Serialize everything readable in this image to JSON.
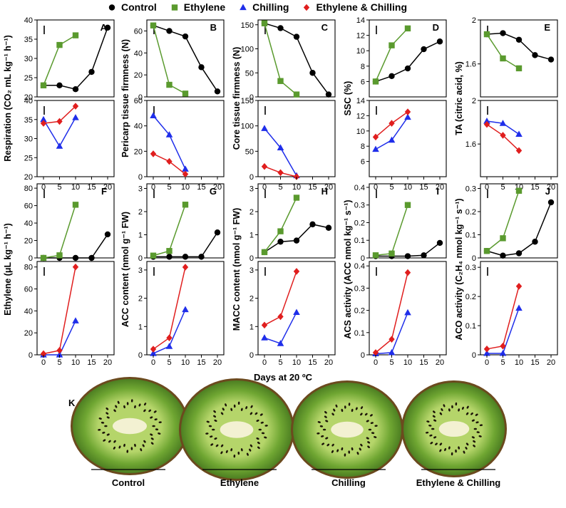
{
  "legend": [
    {
      "name": "Control",
      "color": "#000000",
      "marker": "circle"
    },
    {
      "name": "Ethylene",
      "color": "#5a9a2e",
      "marker": "square"
    },
    {
      "name": "Chilling",
      "color": "#1f2eea",
      "marker": "triangle"
    },
    {
      "name": "Ethylene & Chilling",
      "color": "#e01e1e",
      "marker": "diamond"
    }
  ],
  "xlabel": "Days at 20 ºC",
  "chart_data": [
    {
      "panel": "A",
      "type": "line",
      "ylabel": "Respiration (CO₂ mL kg⁻¹ h⁻¹)",
      "x_ticks": [
        0,
        5,
        10,
        15,
        20
      ],
      "top": {
        "ylim": [
          20,
          40
        ],
        "yticks": [
          20,
          25,
          30,
          35,
          40
        ],
        "series": [
          {
            "name": "Control",
            "x": [
              0,
              5,
              10,
              15,
              20
            ],
            "y": [
              23,
              23,
              22,
              26.5,
              38
            ]
          },
          {
            "name": "Ethylene",
            "x": [
              0,
              5,
              10
            ],
            "y": [
              23,
              33.5,
              36
            ]
          }
        ]
      },
      "bottom": {
        "ylim": [
          20,
          40
        ],
        "yticks": [
          20,
          25,
          30,
          35,
          40
        ],
        "series": [
          {
            "name": "Chilling",
            "x": [
              0,
              5,
              10
            ],
            "y": [
              35,
              28,
              35.5
            ]
          },
          {
            "name": "Ethylene & Chilling",
            "x": [
              0,
              5,
              10
            ],
            "y": [
              34,
              34.5,
              38.5
            ]
          }
        ]
      }
    },
    {
      "panel": "B",
      "type": "line",
      "ylabel": "Pericarp tissue firmness (N)",
      "x_ticks": [
        0,
        5,
        10,
        15,
        20
      ],
      "top": {
        "ylim": [
          0,
          70
        ],
        "yticks": [
          0,
          20,
          40,
          60
        ],
        "series": [
          {
            "name": "Control",
            "x": [
              0,
              5,
              10,
              15,
              20
            ],
            "y": [
              65,
              60,
              55,
              27,
              5
            ]
          },
          {
            "name": "Ethylene",
            "x": [
              0,
              5,
              10
            ],
            "y": [
              65,
              11,
              3
            ]
          }
        ]
      },
      "bottom": {
        "ylim": [
          0,
          60
        ],
        "yticks": [
          0,
          20,
          40,
          60
        ],
        "series": [
          {
            "name": "Chilling",
            "x": [
              0,
              5,
              10
            ],
            "y": [
              48,
              33,
              6
            ]
          },
          {
            "name": "Ethylene & Chilling",
            "x": [
              0,
              5,
              10
            ],
            "y": [
              18,
              12,
              2
            ]
          }
        ]
      }
    },
    {
      "panel": "C",
      "type": "line",
      "ylabel": "Core tissue firmness (N)",
      "x_ticks": [
        0,
        5,
        10,
        15,
        20
      ],
      "top": {
        "ylim": [
          0,
          160
        ],
        "yticks": [
          0,
          50,
          100,
          150
        ],
        "series": [
          {
            "name": "Control",
            "x": [
              0,
              5,
              10,
              15,
              20
            ],
            "y": [
              153,
              143,
              125,
              50,
              5
            ]
          },
          {
            "name": "Ethylene",
            "x": [
              0,
              5,
              10
            ],
            "y": [
              153,
              33,
              5
            ]
          }
        ]
      },
      "bottom": {
        "ylim": [
          0,
          150
        ],
        "yticks": [
          0,
          50,
          100,
          150
        ],
        "series": [
          {
            "name": "Chilling",
            "x": [
              0,
              5,
              10
            ],
            "y": [
              95,
              57,
              2
            ]
          },
          {
            "name": "Ethylene & Chilling",
            "x": [
              0,
              5,
              10
            ],
            "y": [
              20,
              8,
              0
            ]
          }
        ]
      }
    },
    {
      "panel": "D",
      "type": "line",
      "ylabel": "SSC (%)",
      "x_ticks": [
        0,
        5,
        10,
        15,
        20
      ],
      "top": {
        "ylim": [
          4,
          14
        ],
        "yticks": [
          6,
          8,
          10,
          12,
          14
        ],
        "series": [
          {
            "name": "Control",
            "x": [
              0,
              5,
              10,
              15,
              20
            ],
            "y": [
              6,
              6.7,
              7.7,
              10.2,
              11.2
            ]
          },
          {
            "name": "Ethylene",
            "x": [
              0,
              5,
              10
            ],
            "y": [
              6,
              10.7,
              12.9
            ]
          }
        ]
      },
      "bottom": {
        "ylim": [
          4,
          14
        ],
        "yticks": [
          6,
          8,
          10,
          12,
          14
        ],
        "series": [
          {
            "name": "Chilling",
            "x": [
              0,
              5,
              10
            ],
            "y": [
              7.6,
              8.8,
              11.8
            ]
          },
          {
            "name": "Ethylene & Chilling",
            "x": [
              0,
              5,
              10
            ],
            "y": [
              9.2,
              11,
              12.5
            ]
          }
        ]
      }
    },
    {
      "panel": "E",
      "type": "line",
      "ylabel": "TA (citric acid, %)",
      "x_ticks": [
        0,
        5,
        10,
        15,
        20
      ],
      "top": {
        "ylim": [
          1.3,
          2.0
        ],
        "yticks": [
          1.6,
          2.0
        ],
        "series": [
          {
            "name": "Control",
            "x": [
              0,
              5,
              10,
              15,
              20
            ],
            "y": [
              1.87,
              1.88,
              1.82,
              1.68,
              1.64
            ]
          },
          {
            "name": "Ethylene",
            "x": [
              0,
              5,
              10
            ],
            "y": [
              1.87,
              1.65,
              1.56
            ]
          }
        ]
      },
      "bottom": {
        "ylim": [
          1.3,
          2.0
        ],
        "yticks": [
          1.6,
          2.0
        ],
        "series": [
          {
            "name": "Chilling",
            "x": [
              0,
              5,
              10
            ],
            "y": [
              1.81,
              1.79,
              1.69
            ]
          },
          {
            "name": "Ethylene & Chilling",
            "x": [
              0,
              5,
              10
            ],
            "y": [
              1.78,
              1.68,
              1.54
            ]
          }
        ]
      }
    },
    {
      "panel": "F",
      "type": "line",
      "ylabel": "Ethylene (μL kg⁻¹ h⁻¹)",
      "x_ticks": [
        0,
        5,
        10,
        15,
        20
      ],
      "top": {
        "ylim": [
          0,
          85
        ],
        "yticks": [
          0,
          20,
          40,
          60,
          80
        ],
        "series": [
          {
            "name": "Control",
            "x": [
              0,
              5,
              10,
              15,
              20
            ],
            "y": [
              0,
              0,
              0,
              0,
              27
            ]
          },
          {
            "name": "Ethylene",
            "x": [
              0,
              5,
              10
            ],
            "y": [
              0,
              3,
              61
            ]
          }
        ]
      },
      "bottom": {
        "ylim": [
          0,
          85
        ],
        "yticks": [
          0,
          20,
          40,
          60,
          80
        ],
        "series": [
          {
            "name": "Chilling",
            "x": [
              0,
              5,
              10
            ],
            "y": [
              0,
              0,
              31
            ]
          },
          {
            "name": "Ethylene & Chilling",
            "x": [
              0,
              5,
              10
            ],
            "y": [
              1,
              4,
              80
            ]
          }
        ]
      }
    },
    {
      "panel": "G",
      "type": "line",
      "ylabel": "ACC content (nmol g⁻¹ FW)",
      "x_ticks": [
        0,
        5,
        10,
        15,
        20
      ],
      "top": {
        "ylim": [
          0,
          3.2
        ],
        "yticks": [
          0,
          1,
          2,
          3
        ],
        "series": [
          {
            "name": "Control",
            "x": [
              0,
              5,
              10,
              15,
              20
            ],
            "y": [
              0.05,
              0.05,
              0.05,
              0.05,
              1.1
            ]
          },
          {
            "name": "Ethylene",
            "x": [
              0,
              5,
              10
            ],
            "y": [
              0.1,
              0.3,
              2.3
            ]
          }
        ]
      },
      "bottom": {
        "ylim": [
          0,
          3.3
        ],
        "yticks": [
          0,
          1,
          2,
          3
        ],
        "series": [
          {
            "name": "Chilling",
            "x": [
              0,
              5,
              10
            ],
            "y": [
              0.05,
              0.3,
              1.6
            ]
          },
          {
            "name": "Ethylene & Chilling",
            "x": [
              0,
              5,
              10
            ],
            "y": [
              0.2,
              0.6,
              3.1
            ]
          }
        ]
      }
    },
    {
      "panel": "H",
      "type": "line",
      "ylabel": "MACC content (nmol g⁻¹ FW)",
      "x_ticks": [
        0,
        5,
        10,
        15,
        20
      ],
      "top": {
        "ylim": [
          0,
          3.2
        ],
        "yticks": [
          0,
          1,
          2,
          3
        ],
        "series": [
          {
            "name": "Control",
            "x": [
              0,
              5,
              10,
              15,
              20
            ],
            "y": [
              0.25,
              0.7,
              0.75,
              1.45,
              1.3
            ]
          },
          {
            "name": "Ethylene",
            "x": [
              0,
              5,
              10
            ],
            "y": [
              0.25,
              1.15,
              2.6
            ]
          }
        ]
      },
      "bottom": {
        "ylim": [
          0,
          3.3
        ],
        "yticks": [
          0,
          1,
          2,
          3
        ],
        "series": [
          {
            "name": "Chilling",
            "x": [
              0,
              5,
              10
            ],
            "y": [
              0.6,
              0.4,
              1.5
            ]
          },
          {
            "name": "Ethylene & Chilling",
            "x": [
              0,
              5,
              10
            ],
            "y": [
              1.05,
              1.35,
              2.95
            ]
          }
        ]
      }
    },
    {
      "panel": "I",
      "type": "line",
      "ylabel": "ACS activity (ACC nmol kg⁻¹ s⁻¹)",
      "x_ticks": [
        0,
        5,
        10,
        15,
        20
      ],
      "top": {
        "ylim": [
          0,
          0.42
        ],
        "yticks": [
          0,
          0.1,
          0.2,
          0.3,
          0.4
        ],
        "series": [
          {
            "name": "Control",
            "x": [
              0,
              5,
              10,
              15,
              20
            ],
            "y": [
              0.01,
              0.01,
              0.01,
              0.015,
              0.085
            ]
          },
          {
            "name": "Ethylene",
            "x": [
              0,
              5,
              10
            ],
            "y": [
              0.015,
              0.025,
              0.3
            ]
          }
        ]
      },
      "bottom": {
        "ylim": [
          0,
          0.42
        ],
        "yticks": [
          0,
          0.1,
          0.2,
          0.3,
          0.4
        ],
        "series": [
          {
            "name": "Chilling",
            "x": [
              0,
              5,
              10
            ],
            "y": [
              0.005,
              0.01,
              0.19
            ]
          },
          {
            "name": "Ethylene & Chilling",
            "x": [
              0,
              5,
              10
            ],
            "y": [
              0.01,
              0.07,
              0.37
            ]
          }
        ]
      }
    },
    {
      "panel": "J",
      "type": "line",
      "ylabel": "ACO activity (C₂H₄ nmol kg⁻¹ s⁻¹)",
      "x_ticks": [
        0,
        5,
        10,
        15,
        20
      ],
      "top": {
        "ylim": [
          0,
          0.32
        ],
        "yticks": [
          0,
          0.1,
          0.2,
          0.3
        ],
        "series": [
          {
            "name": "Control",
            "x": [
              0,
              5,
              10,
              15,
              20
            ],
            "y": [
              0.03,
              0.01,
              0.02,
              0.07,
              0.24
            ]
          },
          {
            "name": "Ethylene",
            "x": [
              0,
              5,
              10
            ],
            "y": [
              0.03,
              0.085,
              0.29
            ]
          }
        ]
      },
      "bottom": {
        "ylim": [
          0,
          0.32
        ],
        "yticks": [
          0,
          0.1,
          0.2,
          0.3
        ],
        "series": [
          {
            "name": "Chilling",
            "x": [
              0,
              5,
              10
            ],
            "y": [
              0.005,
              0.005,
              0.16
            ]
          },
          {
            "name": "Ethylene & Chilling",
            "x": [
              0,
              5,
              10
            ],
            "y": [
              0.02,
              0.03,
              0.235
            ]
          }
        ]
      }
    }
  ],
  "photo": {
    "label": "K",
    "captions": [
      "Control",
      "Ethylene",
      "Chilling",
      "Ethylene & Chilling"
    ],
    "colors": {
      "skin": "#6b4a1e",
      "flesh": "#6fa632",
      "flesh_light": "#b5d56a",
      "core": "#f3f1d2",
      "seed": "#1c1408"
    }
  }
}
